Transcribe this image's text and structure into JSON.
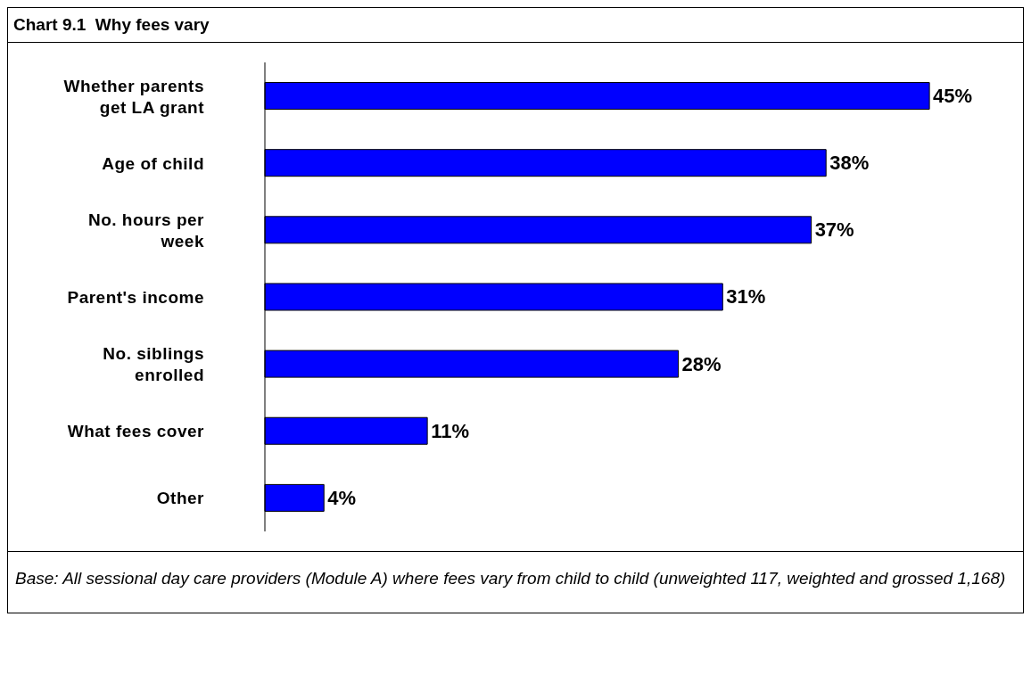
{
  "chart_data": {
    "type": "bar",
    "orientation": "horizontal",
    "title": "Chart 9.1  Why fees vary",
    "categories": [
      "Whether parents get LA grant",
      "Age of child",
      "No. hours per week",
      "Parent's income",
      "No. siblings enrolled",
      "What fees cover",
      "Other"
    ],
    "values": [
      45,
      38,
      37,
      31,
      28,
      11,
      4
    ],
    "value_labels": [
      "45%",
      "38%",
      "37%",
      "31%",
      "28%",
      "11%",
      "4%"
    ],
    "color": "#0000ff",
    "annotations": [
      "Base: All sessional day care  providers (Module A) where fees vary from child to child (unweighted 117, weighted and grossed 1,168)"
    ]
  }
}
